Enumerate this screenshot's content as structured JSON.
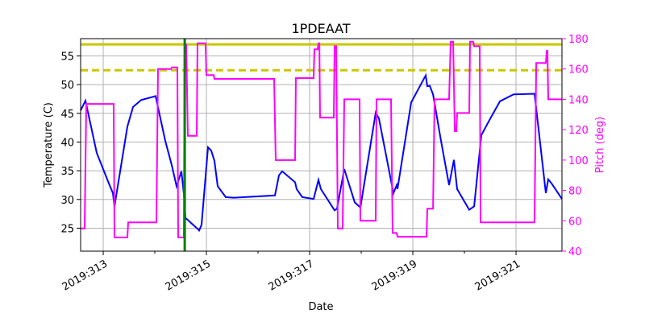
{
  "chart_data": {
    "type": "line",
    "title": "1PDEAAT",
    "xlabel": "Date",
    "ylabel": "Temperature (C)",
    "y2label": "Pitch (deg)",
    "xlim": [
      312.5625,
      321.89
    ],
    "ylim": [
      21,
      58
    ],
    "y2lim": [
      40,
      180
    ],
    "grid": true,
    "x_ticks": [
      313,
      315,
      317,
      319,
      321
    ],
    "x_tick_labels": [
      "2019:313",
      "2019:315",
      "2019:317",
      "2019:319",
      "2019:321"
    ],
    "x_minor_ticks": [
      314,
      316,
      318,
      320
    ],
    "y_ticks": [
      25,
      30,
      35,
      40,
      45,
      50,
      55
    ],
    "y2_ticks": [
      40,
      60,
      80,
      100,
      120,
      140,
      160,
      180
    ],
    "colors": {
      "temperature": "#0000ff",
      "pitch": "#ff00ff",
      "limit": "#c8c800",
      "event": "#008000",
      "y2axis": "#ff00ff"
    },
    "limits": [
      {
        "value": 57,
        "style": "solid"
      },
      {
        "value": 52.5,
        "style": "dashed"
      }
    ],
    "event_line_x": 314.58,
    "series": [
      {
        "axis": "left",
        "points": [
          [
            312.563,
            45.5
          ],
          [
            312.656,
            47.2
          ],
          [
            312.875,
            38.1
          ],
          [
            313.109,
            32.8
          ],
          [
            313.188,
            31.1
          ],
          [
            313.219,
            28.8
          ],
          [
            313.469,
            42.7
          ],
          [
            313.578,
            46.1
          ],
          [
            313.734,
            47.3
          ],
          [
            314.016,
            48
          ],
          [
            314.203,
            40.2
          ],
          [
            314.328,
            36
          ],
          [
            314.422,
            32.3
          ],
          [
            314.516,
            34.9
          ],
          [
            314.563,
            31
          ],
          [
            314.594,
            26.8
          ],
          [
            314.828,
            24.9
          ],
          [
            314.859,
            24.6
          ],
          [
            314.906,
            25.6
          ],
          [
            315.031,
            39.1
          ],
          [
            315.094,
            38.5
          ],
          [
            315.156,
            36.7
          ],
          [
            315.219,
            32.3
          ],
          [
            315.375,
            30.4
          ],
          [
            315.531,
            30.3
          ],
          [
            316.328,
            30.7
          ],
          [
            316.406,
            34.2
          ],
          [
            316.469,
            34.9
          ],
          [
            316.719,
            33
          ],
          [
            316.75,
            31.8
          ],
          [
            316.859,
            30.4
          ],
          [
            317.078,
            30.1
          ],
          [
            317.172,
            33.4
          ],
          [
            317.219,
            31.8
          ],
          [
            317.484,
            28.1
          ],
          [
            317.531,
            28.4
          ],
          [
            317.672,
            35.3
          ],
          [
            317.875,
            29.5
          ],
          [
            317.984,
            28.6
          ],
          [
            318.281,
            45.1
          ],
          [
            318.344,
            44.1
          ],
          [
            318.625,
            31.1
          ],
          [
            318.688,
            32.5
          ],
          [
            318.703,
            31.8
          ],
          [
            318.969,
            46.9
          ],
          [
            319.25,
            51.6
          ],
          [
            319.281,
            49.7
          ],
          [
            319.328,
            49.8
          ],
          [
            319.391,
            48.3
          ],
          [
            319.547,
            40.2
          ],
          [
            319.703,
            32.5
          ],
          [
            319.797,
            36.9
          ],
          [
            319.859,
            31.8
          ],
          [
            320.094,
            28.2
          ],
          [
            320.188,
            28.8
          ],
          [
            320.328,
            41.2
          ],
          [
            320.484,
            43.8
          ],
          [
            320.688,
            47.1
          ],
          [
            320.953,
            48.3
          ],
          [
            321.359,
            48.4
          ],
          [
            321.578,
            31.1
          ],
          [
            321.625,
            33.5
          ],
          [
            321.688,
            32.8
          ],
          [
            321.89,
            30.1
          ]
        ]
      },
      {
        "axis": "right",
        "points": [
          [
            312.563,
            55
          ],
          [
            312.641,
            55
          ],
          [
            312.672,
            137
          ],
          [
            313.203,
            137
          ],
          [
            313.219,
            49
          ],
          [
            313.469,
            49
          ],
          [
            313.484,
            59
          ],
          [
            314.031,
            59
          ],
          [
            314.063,
            160
          ],
          [
            314.313,
            160
          ],
          [
            314.328,
            161
          ],
          [
            314.438,
            161
          ],
          [
            314.453,
            49
          ],
          [
            314.563,
            49
          ],
          [
            314.578,
            176
          ],
          [
            314.609,
            176
          ],
          [
            314.641,
            116
          ],
          [
            314.813,
            116
          ],
          [
            314.828,
            177
          ],
          [
            314.984,
            177
          ],
          [
            315,
            156
          ],
          [
            315.141,
            156
          ],
          [
            315.156,
            153.5
          ],
          [
            316.313,
            153.5
          ],
          [
            316.344,
            100
          ],
          [
            316.719,
            100
          ],
          [
            316.734,
            154
          ],
          [
            317.078,
            154
          ],
          [
            317.094,
            173
          ],
          [
            317.156,
            173
          ],
          [
            317.172,
            177
          ],
          [
            317.188,
            177
          ],
          [
            317.203,
            128
          ],
          [
            317.469,
            128
          ],
          [
            317.484,
            175
          ],
          [
            317.516,
            175
          ],
          [
            317.547,
            55
          ],
          [
            317.641,
            55
          ],
          [
            317.672,
            140
          ],
          [
            317.969,
            140
          ],
          [
            317.984,
            60
          ],
          [
            318.281,
            60
          ],
          [
            318.297,
            140
          ],
          [
            318.578,
            140
          ],
          [
            318.609,
            52
          ],
          [
            318.688,
            52
          ],
          [
            318.703,
            49.5
          ],
          [
            319.266,
            49.5
          ],
          [
            319.281,
            68
          ],
          [
            319.391,
            68
          ],
          [
            319.422,
            140
          ],
          [
            319.703,
            140
          ],
          [
            319.734,
            178
          ],
          [
            319.781,
            178
          ],
          [
            319.813,
            119
          ],
          [
            319.844,
            119
          ],
          [
            319.859,
            131
          ],
          [
            320.094,
            131
          ],
          [
            320.109,
            178
          ],
          [
            320.172,
            178
          ],
          [
            320.188,
            175
          ],
          [
            320.297,
            175
          ],
          [
            320.313,
            59
          ],
          [
            321.359,
            59
          ],
          [
            321.391,
            164
          ],
          [
            321.578,
            164
          ],
          [
            321.594,
            172
          ],
          [
            321.609,
            172
          ],
          [
            321.625,
            140
          ],
          [
            321.89,
            140
          ]
        ]
      }
    ]
  }
}
